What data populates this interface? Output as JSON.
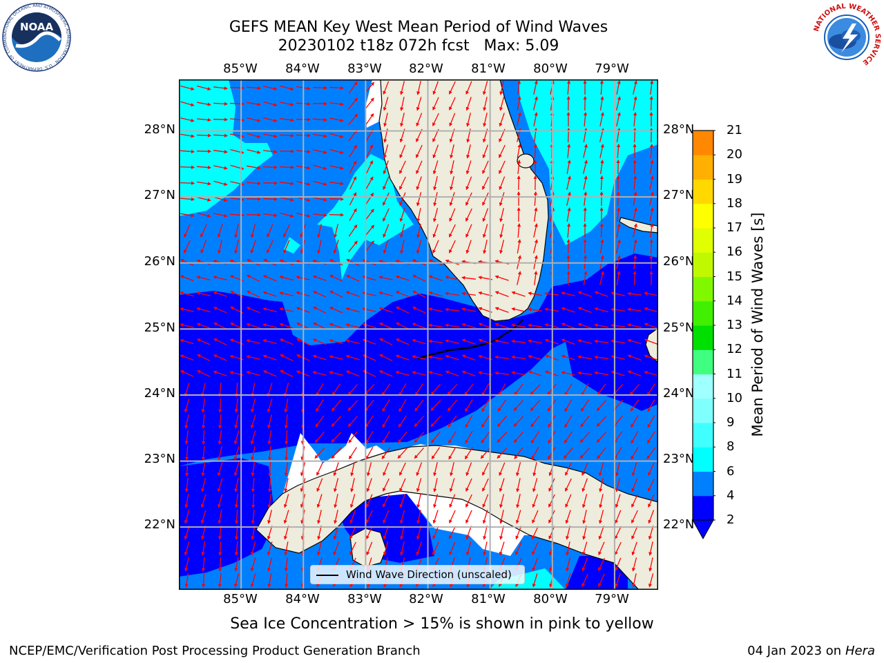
{
  "header": {
    "title_line1": "GEFS MEAN Key West Mean Period of Wind Waves",
    "title_line2": "20230102 t18z 072h fcst   Max: 5.09"
  },
  "logos": {
    "noaa_text": "NOAA",
    "noaa_ring_text": "NATIONAL OCEANIC AND ATMOSPHERIC ADMINISTRATION · U.S. DEPARTMENT OF COMMERCE",
    "nws_ring_text": "NATIONAL WEATHER SERVICE"
  },
  "map": {
    "region": "Florida Straits / Key West",
    "lon_ticks": [
      "85°W",
      "84°W",
      "83°W",
      "82°W",
      "81°W",
      "80°W",
      "79°W"
    ],
    "lat_ticks": [
      "28°N",
      "27°N",
      "26°N",
      "25°N",
      "24°N",
      "23°N",
      "22°N"
    ],
    "lon_range": [
      -86.0,
      -78.3
    ],
    "lat_range": [
      21.05,
      28.78
    ],
    "colors": {
      "land": "#eeecdc",
      "wave_2_4": "#0000ff",
      "wave_4_6": "#0080ff",
      "wave_6_8": "#00ffff",
      "arrow": "#ff0000",
      "grid": "#b0b0b0",
      "coast": "#000000"
    }
  },
  "colorbar": {
    "label": "Mean Period of Wind Waves [s]",
    "ticks": [
      "2",
      "4",
      "6",
      "8",
      "9",
      "10",
      "11",
      "12",
      "13",
      "14",
      "15",
      "16",
      "17",
      "18",
      "19",
      "20",
      "21"
    ],
    "colors": [
      "#0000ff",
      "#0080ff",
      "#00ffff",
      "#40ffff",
      "#80ffff",
      "#a0ffff",
      "#40ff80",
      "#00e000",
      "#40f000",
      "#80f800",
      "#c0f800",
      "#e0ff00",
      "#ffff00",
      "#ffd800",
      "#ffb000",
      "#ff8800",
      "#ff6000",
      "#ff3000",
      "#ff0000"
    ]
  },
  "legend": {
    "label": "Wind Wave Direction (unscaled)"
  },
  "note": "Sea Ice Concentration > 15% is shown in pink to yellow",
  "footer": {
    "left": "NCEP/EMC/Verification Post Processing Product Generation Branch",
    "right_prefix": "04 Jan 2023 on ",
    "right_host": "Hera"
  }
}
